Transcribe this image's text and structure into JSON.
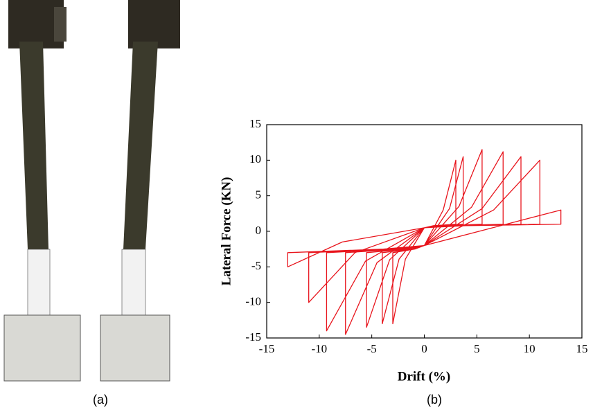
{
  "captions": [
    "(a)",
    "(b)"
  ],
  "chart_data": {
    "type": "line",
    "xlabel": "Drift (%)",
    "ylabel": "Lateral Force (KN)",
    "color": "#e8141c",
    "xlim": [
      -15,
      15
    ],
    "xticks": [
      -15,
      -10,
      -5,
      0,
      5,
      10,
      15
    ],
    "ylim": [
      -15,
      15
    ],
    "yticks": [
      -15,
      -10,
      -5,
      0,
      5,
      10,
      15
    ],
    "x": [
      0,
      1.8,
      3,
      3,
      0.9,
      0,
      -1.8,
      -3,
      -3,
      -0.9,
      0,
      2.4,
      3.7,
      3.7,
      1.2,
      0,
      -2.4,
      -4,
      -4,
      -1.2,
      0,
      3.3,
      5.5,
      5.5,
      1.7,
      0,
      -3.3,
      -5.5,
      -5.5,
      -1.7,
      0,
      4.5,
      7.5,
      7.5,
      2.3,
      0,
      -4.5,
      -7.5,
      -7.5,
      -2.3,
      0,
      5.5,
      9.2,
      9.2,
      2.8,
      0,
      -5.6,
      -9.3,
      -9.3,
      -2.8,
      0,
      6.6,
      11,
      11,
      3.3,
      0,
      -6.6,
      -11,
      -11,
      -3.3,
      0,
      7.8,
      13,
      13,
      3.9,
      0,
      -7.8,
      -13,
      -13,
      -3.9,
      0
    ],
    "values": [
      -2,
      3,
      10,
      1,
      0.8,
      0.5,
      -3.9,
      -13,
      -3,
      -2.5,
      -2,
      3.2,
      10.5,
      1,
      0.8,
      0.5,
      -3.9,
      -13,
      -3,
      -2.5,
      -2,
      3.5,
      11.5,
      1,
      0.8,
      0.5,
      -4,
      -13.5,
      -3,
      -2.5,
      -2,
      3.4,
      11.2,
      1,
      0.8,
      0.5,
      -4.4,
      -14.5,
      -3,
      -2.5,
      -2,
      3.2,
      10.5,
      1,
      0.8,
      0.5,
      -4.2,
      -14,
      -3,
      -2.5,
      -2,
      3,
      10,
      1,
      0.8,
      0.5,
      -3,
      -10,
      -3,
      -2.5,
      -2,
      1,
      3,
      1,
      0.8,
      0.5,
      -1.5,
      -5,
      -3,
      -2.5,
      -2
    ]
  }
}
